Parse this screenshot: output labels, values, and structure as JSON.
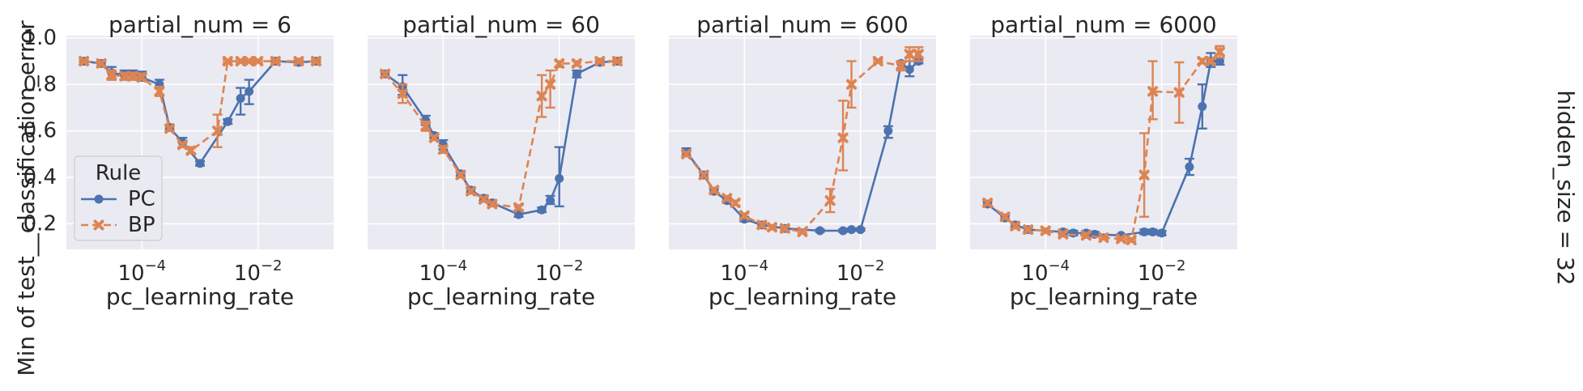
{
  "figure": {
    "ylabel": "Min of test__classification_error",
    "xlabel": "pc_learning_rate",
    "row_label": "hidden_size = 32",
    "yticks": [
      "0.2",
      "0.4",
      "0.6",
      "0.8",
      "1.0"
    ],
    "xticks": [
      {
        "value": 0.0001,
        "base": "10",
        "exp": "−4"
      },
      {
        "value": 0.01,
        "base": "10",
        "exp": "−2"
      }
    ],
    "legend": {
      "title": "Rule",
      "entries": [
        {
          "label": "PC",
          "color": "#4c72b0",
          "marker": "circle",
          "dash": "solid"
        },
        {
          "label": "BP",
          "color": "#dd8452",
          "marker": "x",
          "dash": "dashed"
        }
      ]
    },
    "colors": {
      "background": "#eaeaf2",
      "grid": "#ffffff",
      "PC": "#4c72b0",
      "BP": "#dd8452"
    }
  },
  "chart_data": [
    {
      "type": "line",
      "title": "partial_num = 6",
      "xscale": "log",
      "xlim": [
        5e-06,
        0.2
      ],
      "ylim": [
        0.09,
        1.01
      ],
      "xlabel": "pc_learning_rate",
      "ylabel": "Min of test__classification_error",
      "series": [
        {
          "name": "PC",
          "points": [
            {
              "x": 1e-05,
              "y": 0.9,
              "lo": 0.895,
              "hi": 0.905
            },
            {
              "x": 2e-05,
              "y": 0.89,
              "lo": 0.88,
              "hi": 0.9
            },
            {
              "x": 3e-05,
              "y": 0.85,
              "lo": 0.82,
              "hi": 0.875
            },
            {
              "x": 5e-05,
              "y": 0.84,
              "lo": 0.82,
              "hi": 0.86
            },
            {
              "x": 7e-05,
              "y": 0.84,
              "lo": 0.82,
              "hi": 0.86
            },
            {
              "x": 0.0001,
              "y": 0.83,
              "lo": 0.82,
              "hi": 0.855
            },
            {
              "x": 0.0002,
              "y": 0.8,
              "lo": 0.785,
              "hi": 0.82
            },
            {
              "x": 0.0003,
              "y": 0.615,
              "lo": 0.605,
              "hi": 0.625
            },
            {
              "x": 0.0005,
              "y": 0.55,
              "lo": 0.53,
              "hi": 0.57
            },
            {
              "x": 0.001,
              "y": 0.46,
              "lo": 0.45,
              "hi": 0.47
            },
            {
              "x": 0.003,
              "y": 0.64,
              "lo": 0.63,
              "hi": 0.65
            },
            {
              "x": 0.005,
              "y": 0.74,
              "lo": 0.67,
              "hi": 0.785
            },
            {
              "x": 0.007,
              "y": 0.77,
              "lo": 0.715,
              "hi": 0.82
            },
            {
              "x": 0.02,
              "y": 0.9,
              "lo": 0.895,
              "hi": 0.905
            },
            {
              "x": 0.05,
              "y": 0.895,
              "lo": 0.89,
              "hi": 0.9
            },
            {
              "x": 0.1,
              "y": 0.9,
              "lo": 0.895,
              "hi": 0.905
            }
          ]
        },
        {
          "name": "BP",
          "points": [
            {
              "x": 1e-05,
              "y": 0.9,
              "lo": 0.895,
              "hi": 0.905
            },
            {
              "x": 2e-05,
              "y": 0.89,
              "lo": 0.88,
              "hi": 0.9
            },
            {
              "x": 3e-05,
              "y": 0.84,
              "lo": 0.82,
              "hi": 0.86
            },
            {
              "x": 5e-05,
              "y": 0.835,
              "lo": 0.82,
              "hi": 0.85
            },
            {
              "x": 7e-05,
              "y": 0.835,
              "lo": 0.82,
              "hi": 0.85
            },
            {
              "x": 0.0001,
              "y": 0.83,
              "lo": 0.82,
              "hi": 0.845
            },
            {
              "x": 0.0002,
              "y": 0.77,
              "lo": 0.75,
              "hi": 0.79
            },
            {
              "x": 0.0003,
              "y": 0.61,
              "lo": 0.6,
              "hi": 0.62
            },
            {
              "x": 0.0005,
              "y": 0.54,
              "lo": 0.53,
              "hi": 0.55
            },
            {
              "x": 0.0007,
              "y": 0.515,
              "lo": 0.505,
              "hi": 0.53
            },
            {
              "x": 0.002,
              "y": 0.6,
              "lo": 0.53,
              "hi": 0.67
            },
            {
              "x": 0.003,
              "y": 0.9,
              "lo": 0.895,
              "hi": 0.905
            },
            {
              "x": 0.005,
              "y": 0.9,
              "lo": 0.895,
              "hi": 0.905
            },
            {
              "x": 0.007,
              "y": 0.9,
              "lo": 0.895,
              "hi": 0.905
            },
            {
              "x": 0.01,
              "y": 0.9,
              "lo": 0.895,
              "hi": 0.905
            },
            {
              "x": 0.02,
              "y": 0.9,
              "lo": 0.895,
              "hi": 0.905
            },
            {
              "x": 0.05,
              "y": 0.9,
              "lo": 0.895,
              "hi": 0.905
            },
            {
              "x": 0.1,
              "y": 0.9,
              "lo": 0.895,
              "hi": 0.905
            }
          ]
        }
      ]
    },
    {
      "type": "line",
      "title": "partial_num = 60",
      "xscale": "log",
      "xlim": [
        5e-06,
        0.2
      ],
      "ylim": [
        0.09,
        1.01
      ],
      "xlabel": "pc_learning_rate",
      "ylabel": "",
      "series": [
        {
          "name": "PC",
          "points": [
            {
              "x": 1e-05,
              "y": 0.845,
              "lo": 0.835,
              "hi": 0.855
            },
            {
              "x": 2e-05,
              "y": 0.79,
              "lo": 0.755,
              "hi": 0.84
            },
            {
              "x": 5e-05,
              "y": 0.645,
              "lo": 0.625,
              "hi": 0.665
            },
            {
              "x": 7e-05,
              "y": 0.58,
              "lo": 0.57,
              "hi": 0.59
            },
            {
              "x": 0.0001,
              "y": 0.54,
              "lo": 0.52,
              "hi": 0.56
            },
            {
              "x": 0.0002,
              "y": 0.415,
              "lo": 0.405,
              "hi": 0.425
            },
            {
              "x": 0.0003,
              "y": 0.345,
              "lo": 0.335,
              "hi": 0.355
            },
            {
              "x": 0.0005,
              "y": 0.31,
              "lo": 0.3,
              "hi": 0.32
            },
            {
              "x": 0.0007,
              "y": 0.29,
              "lo": 0.28,
              "hi": 0.3
            },
            {
              "x": 0.002,
              "y": 0.24,
              "lo": 0.23,
              "hi": 0.25
            },
            {
              "x": 0.005,
              "y": 0.26,
              "lo": 0.25,
              "hi": 0.27
            },
            {
              "x": 0.007,
              "y": 0.3,
              "lo": 0.285,
              "hi": 0.32
            },
            {
              "x": 0.01,
              "y": 0.395,
              "lo": 0.275,
              "hi": 0.53
            },
            {
              "x": 0.02,
              "y": 0.845,
              "lo": 0.83,
              "hi": 0.86
            },
            {
              "x": 0.05,
              "y": 0.895,
              "lo": 0.89,
              "hi": 0.9
            },
            {
              "x": 0.1,
              "y": 0.9,
              "lo": 0.895,
              "hi": 0.905
            }
          ]
        },
        {
          "name": "BP",
          "points": [
            {
              "x": 1e-05,
              "y": 0.845,
              "lo": 0.835,
              "hi": 0.855
            },
            {
              "x": 2e-05,
              "y": 0.76,
              "lo": 0.72,
              "hi": 0.8
            },
            {
              "x": 5e-05,
              "y": 0.62,
              "lo": 0.6,
              "hi": 0.64
            },
            {
              "x": 7e-05,
              "y": 0.57,
              "lo": 0.56,
              "hi": 0.58
            },
            {
              "x": 0.0001,
              "y": 0.52,
              "lo": 0.505,
              "hi": 0.535
            },
            {
              "x": 0.0002,
              "y": 0.41,
              "lo": 0.4,
              "hi": 0.42
            },
            {
              "x": 0.0003,
              "y": 0.34,
              "lo": 0.33,
              "hi": 0.35
            },
            {
              "x": 0.0005,
              "y": 0.305,
              "lo": 0.295,
              "hi": 0.315
            },
            {
              "x": 0.0007,
              "y": 0.285,
              "lo": 0.275,
              "hi": 0.295
            },
            {
              "x": 0.002,
              "y": 0.27,
              "lo": 0.26,
              "hi": 0.28
            },
            {
              "x": 0.005,
              "y": 0.75,
              "lo": 0.66,
              "hi": 0.84
            },
            {
              "x": 0.007,
              "y": 0.8,
              "lo": 0.7,
              "hi": 0.86
            },
            {
              "x": 0.01,
              "y": 0.89,
              "lo": 0.875,
              "hi": 0.9
            },
            {
              "x": 0.02,
              "y": 0.89,
              "lo": 0.88,
              "hi": 0.9
            },
            {
              "x": 0.05,
              "y": 0.9,
              "lo": 0.895,
              "hi": 0.905
            },
            {
              "x": 0.1,
              "y": 0.9,
              "lo": 0.895,
              "hi": 0.905
            }
          ]
        }
      ]
    },
    {
      "type": "line",
      "title": "partial_num = 600",
      "xscale": "log",
      "xlim": [
        5e-06,
        0.2
      ],
      "ylim": [
        0.09,
        1.01
      ],
      "xlabel": "pc_learning_rate",
      "ylabel": "",
      "series": [
        {
          "name": "PC",
          "points": [
            {
              "x": 1e-05,
              "y": 0.51,
              "lo": 0.495,
              "hi": 0.525
            },
            {
              "x": 2e-05,
              "y": 0.41,
              "lo": 0.4,
              "hi": 0.42
            },
            {
              "x": 3e-05,
              "y": 0.34,
              "lo": 0.33,
              "hi": 0.35
            },
            {
              "x": 5e-05,
              "y": 0.3,
              "lo": 0.29,
              "hi": 0.31
            },
            {
              "x": 0.0001,
              "y": 0.22,
              "lo": 0.21,
              "hi": 0.23
            },
            {
              "x": 0.0002,
              "y": 0.195,
              "lo": 0.185,
              "hi": 0.205
            },
            {
              "x": 0.0005,
              "y": 0.18,
              "lo": 0.17,
              "hi": 0.19
            },
            {
              "x": 0.002,
              "y": 0.17,
              "lo": 0.165,
              "hi": 0.175
            },
            {
              "x": 0.005,
              "y": 0.17,
              "lo": 0.165,
              "hi": 0.175
            },
            {
              "x": 0.007,
              "y": 0.175,
              "lo": 0.17,
              "hi": 0.18
            },
            {
              "x": 0.01,
              "y": 0.175,
              "lo": 0.17,
              "hi": 0.18
            },
            {
              "x": 0.03,
              "y": 0.6,
              "lo": 0.57,
              "hi": 0.62
            },
            {
              "x": 0.05,
              "y": 0.89,
              "lo": 0.87,
              "hi": 0.9
            },
            {
              "x": 0.07,
              "y": 0.865,
              "lo": 0.835,
              "hi": 0.9
            },
            {
              "x": 0.1,
              "y": 0.9,
              "lo": 0.89,
              "hi": 0.91
            }
          ]
        },
        {
          "name": "BP",
          "points": [
            {
              "x": 1e-05,
              "y": 0.5,
              "lo": 0.49,
              "hi": 0.51
            },
            {
              "x": 2e-05,
              "y": 0.41,
              "lo": 0.4,
              "hi": 0.42
            },
            {
              "x": 3e-05,
              "y": 0.345,
              "lo": 0.335,
              "hi": 0.355
            },
            {
              "x": 5e-05,
              "y": 0.31,
              "lo": 0.3,
              "hi": 0.32
            },
            {
              "x": 7e-05,
              "y": 0.29,
              "lo": 0.28,
              "hi": 0.3
            },
            {
              "x": 0.0001,
              "y": 0.235,
              "lo": 0.225,
              "hi": 0.245
            },
            {
              "x": 0.0002,
              "y": 0.195,
              "lo": 0.185,
              "hi": 0.205
            },
            {
              "x": 0.0003,
              "y": 0.185,
              "lo": 0.175,
              "hi": 0.195
            },
            {
              "x": 0.0005,
              "y": 0.18,
              "lo": 0.17,
              "hi": 0.19
            },
            {
              "x": 0.001,
              "y": 0.165,
              "lo": 0.16,
              "hi": 0.17
            },
            {
              "x": 0.003,
              "y": 0.3,
              "lo": 0.25,
              "hi": 0.35
            },
            {
              "x": 0.005,
              "y": 0.57,
              "lo": 0.43,
              "hi": 0.73
            },
            {
              "x": 0.007,
              "y": 0.8,
              "lo": 0.7,
              "hi": 0.9
            },
            {
              "x": 0.02,
              "y": 0.9,
              "lo": 0.895,
              "hi": 0.905
            },
            {
              "x": 0.05,
              "y": 0.88,
              "lo": 0.86,
              "hi": 0.9
            },
            {
              "x": 0.07,
              "y": 0.93,
              "lo": 0.9,
              "hi": 0.96
            },
            {
              "x": 0.1,
              "y": 0.93,
              "lo": 0.9,
              "hi": 0.96
            }
          ]
        }
      ]
    },
    {
      "type": "line",
      "title": "partial_num = 6000",
      "xscale": "log",
      "xlim": [
        5e-06,
        0.2
      ],
      "ylim": [
        0.09,
        1.01
      ],
      "xlabel": "pc_learning_rate",
      "ylabel": "",
      "series": [
        {
          "name": "PC",
          "points": [
            {
              "x": 1e-05,
              "y": 0.285,
              "lo": 0.275,
              "hi": 0.295
            },
            {
              "x": 2e-05,
              "y": 0.225,
              "lo": 0.215,
              "hi": 0.235
            },
            {
              "x": 3e-05,
              "y": 0.195,
              "lo": 0.185,
              "hi": 0.205
            },
            {
              "x": 5e-05,
              "y": 0.175,
              "lo": 0.165,
              "hi": 0.185
            },
            {
              "x": 0.0002,
              "y": 0.165,
              "lo": 0.155,
              "hi": 0.175
            },
            {
              "x": 0.0003,
              "y": 0.16,
              "lo": 0.15,
              "hi": 0.17
            },
            {
              "x": 0.0005,
              "y": 0.16,
              "lo": 0.15,
              "hi": 0.17
            },
            {
              "x": 0.0007,
              "y": 0.155,
              "lo": 0.145,
              "hi": 0.165
            },
            {
              "x": 0.002,
              "y": 0.15,
              "lo": 0.145,
              "hi": 0.155
            },
            {
              "x": 0.005,
              "y": 0.165,
              "lo": 0.155,
              "hi": 0.175
            },
            {
              "x": 0.007,
              "y": 0.165,
              "lo": 0.155,
              "hi": 0.175
            },
            {
              "x": 0.01,
              "y": 0.16,
              "lo": 0.15,
              "hi": 0.17
            },
            {
              "x": 0.03,
              "y": 0.445,
              "lo": 0.41,
              "hi": 0.48
            },
            {
              "x": 0.05,
              "y": 0.705,
              "lo": 0.61,
              "hi": 0.8
            },
            {
              "x": 0.07,
              "y": 0.9,
              "lo": 0.875,
              "hi": 0.935
            },
            {
              "x": 0.1,
              "y": 0.9,
              "lo": 0.885,
              "hi": 0.915
            }
          ]
        },
        {
          "name": "BP",
          "points": [
            {
              "x": 1e-05,
              "y": 0.29,
              "lo": 0.28,
              "hi": 0.3
            },
            {
              "x": 2e-05,
              "y": 0.23,
              "lo": 0.22,
              "hi": 0.24
            },
            {
              "x": 3e-05,
              "y": 0.19,
              "lo": 0.18,
              "hi": 0.2
            },
            {
              "x": 5e-05,
              "y": 0.175,
              "lo": 0.165,
              "hi": 0.185
            },
            {
              "x": 0.0001,
              "y": 0.17,
              "lo": 0.16,
              "hi": 0.18
            },
            {
              "x": 0.0002,
              "y": 0.155,
              "lo": 0.145,
              "hi": 0.165
            },
            {
              "x": 0.0005,
              "y": 0.15,
              "lo": 0.14,
              "hi": 0.16
            },
            {
              "x": 0.001,
              "y": 0.14,
              "lo": 0.135,
              "hi": 0.145
            },
            {
              "x": 0.002,
              "y": 0.135,
              "lo": 0.13,
              "hi": 0.14
            },
            {
              "x": 0.003,
              "y": 0.13,
              "lo": 0.125,
              "hi": 0.135
            },
            {
              "x": 0.005,
              "y": 0.41,
              "lo": 0.23,
              "hi": 0.59
            },
            {
              "x": 0.007,
              "y": 0.77,
              "lo": 0.65,
              "hi": 0.9
            },
            {
              "x": 0.02,
              "y": 0.765,
              "lo": 0.635,
              "hi": 0.895
            },
            {
              "x": 0.05,
              "y": 0.9,
              "lo": 0.89,
              "hi": 0.91
            },
            {
              "x": 0.07,
              "y": 0.9,
              "lo": 0.89,
              "hi": 0.91
            },
            {
              "x": 0.1,
              "y": 0.94,
              "lo": 0.915,
              "hi": 0.965
            }
          ]
        }
      ]
    }
  ]
}
